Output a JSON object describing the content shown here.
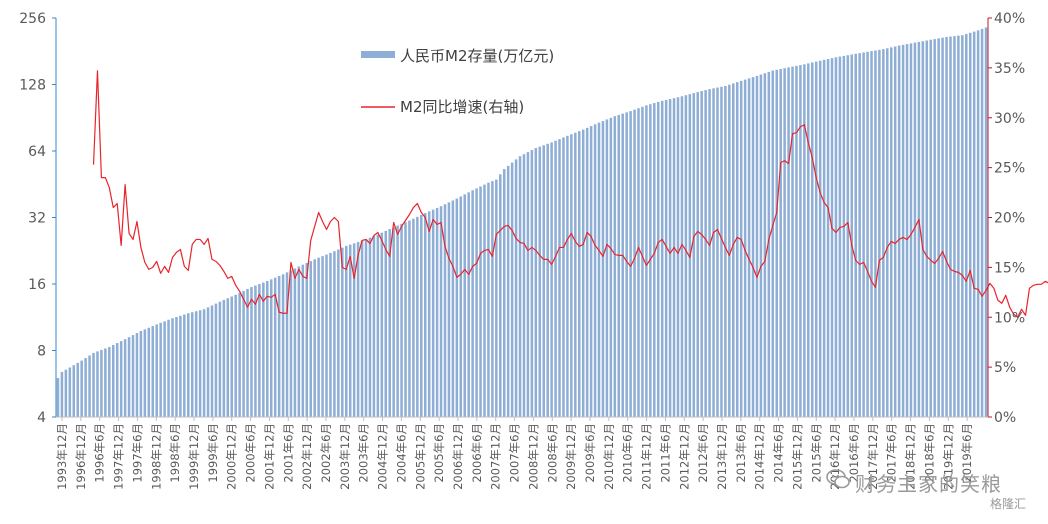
{
  "chart_data": {
    "type": "bar+line",
    "title": "",
    "left_axis": {
      "scale": "log2",
      "range": [
        4,
        256
      ],
      "ticks": [
        "4",
        "8",
        "16",
        "32",
        "64",
        "128",
        "256"
      ]
    },
    "right_axis": {
      "range": [
        0,
        40
      ],
      "ticks": [
        "0%",
        "5%",
        "10%",
        "15%",
        "20%",
        "25%",
        "30%",
        "35%",
        "40%"
      ]
    },
    "x_labels": [
      "1993年12月",
      "1996年12月",
      "1996年6月",
      "1997年12月",
      "1997年6月",
      "1998年12月",
      "1998年6月",
      "1999年12月",
      "1999年6月",
      "2000年12月",
      "2000年6月",
      "2001年12月",
      "2001年6月",
      "2002年12月",
      "2002年6月",
      "2003年12月",
      "2003年6月",
      "2004年12月",
      "2004年6月",
      "2005年12月",
      "2005年6月",
      "2006年12月",
      "2006年6月",
      "2007年12月",
      "2007年6月",
      "2008年12月",
      "2008年6月",
      "2009年12月",
      "2009年6月",
      "2010年12月",
      "2010年6月",
      "2011年12月",
      "2011年6月",
      "2012年12月",
      "2012年6月",
      "2013年12月",
      "2013年6月",
      "2014年12月",
      "2014年6月",
      "2015年12月",
      "2015年6月",
      "2016年12月",
      "2016年6月",
      "2017年12月",
      "2017年6月",
      "2018年12月",
      "2018年6月",
      "2019年12月",
      "2019年6月"
    ],
    "series": [
      {
        "name": "人民币M2存量(万亿元)",
        "type": "bar",
        "axis": "left",
        "color": "#8eaed6",
        "anchors": [
          [
            0,
            6.0
          ],
          [
            1,
            6.4
          ],
          [
            3,
            6.7
          ],
          [
            6,
            7.2
          ],
          [
            9,
            7.8
          ],
          [
            13,
            8.3
          ],
          [
            17,
            9.0
          ],
          [
            21,
            9.8
          ],
          [
            25,
            10.5
          ],
          [
            29,
            11.2
          ],
          [
            33,
            11.8
          ],
          [
            37,
            12.3
          ],
          [
            41,
            13.3
          ],
          [
            45,
            14.3
          ],
          [
            49,
            15.5
          ],
          [
            53,
            16.5
          ],
          [
            57,
            17.7
          ],
          [
            61,
            19.2
          ],
          [
            65,
            20.7
          ],
          [
            69,
            22.1
          ],
          [
            73,
            23.8
          ],
          [
            77,
            25.1
          ],
          [
            81,
            26.8
          ],
          [
            85,
            28.9
          ],
          [
            89,
            31.0
          ],
          [
            93,
            33.5
          ],
          [
            97,
            36.0
          ],
          [
            101,
            39.0
          ],
          [
            105,
            42.5
          ],
          [
            109,
            46.0
          ],
          [
            111,
            47.5
          ],
          [
            113,
            53.0
          ],
          [
            117,
            60.6
          ],
          [
            121,
            66.0
          ],
          [
            125,
            70.0
          ],
          [
            129,
            75.0
          ],
          [
            133,
            80.0
          ],
          [
            137,
            86.0
          ],
          [
            141,
            92.0
          ],
          [
            145,
            97.0
          ],
          [
            149,
            103.0
          ],
          [
            153,
            108.0
          ],
          [
            157,
            112.0
          ],
          [
            161,
            117.0
          ],
          [
            165,
            122.0
          ],
          [
            169,
            126.0
          ],
          [
            173,
            133.0
          ],
          [
            177,
            140.0
          ],
          [
            181,
            148.0
          ],
          [
            185,
            153.0
          ],
          [
            189,
            158.0
          ],
          [
            193,
            164.0
          ],
          [
            197,
            170.0
          ],
          [
            201,
            175.0
          ],
          [
            205,
            180.0
          ],
          [
            209,
            185.0
          ],
          [
            213,
            192.0
          ],
          [
            217,
            198.0
          ],
          [
            221,
            204.0
          ],
          [
            225,
            210.0
          ],
          [
            229,
            214.0
          ],
          [
            233,
            225.0
          ],
          [
            235,
            232.0
          ]
        ]
      },
      {
        "name": "M2同比增速(右轴)",
        "type": "line",
        "axis": "right",
        "color": "#e8242b",
        "start_index": 9,
        "values": [
          25.3,
          34.7,
          24.0,
          24.0,
          23.0,
          21.0,
          21.4,
          17.2,
          23.3,
          18.4,
          17.8,
          19.6,
          17.0,
          15.5,
          14.8,
          15.0,
          15.6,
          14.4,
          15.1,
          14.5,
          16.0,
          16.5,
          16.8,
          15.1,
          14.7,
          17.3,
          17.8,
          17.8,
          17.3,
          17.9,
          15.8,
          15.6,
          15.2,
          14.6,
          13.9,
          14.1,
          13.2,
          12.6,
          11.8,
          11.0,
          11.8,
          11.3,
          12.3,
          11.6,
          12.1,
          12.0,
          12.3,
          10.5,
          10.4,
          10.4,
          15.5,
          13.9,
          14.8,
          14.1,
          13.9,
          17.7,
          19.1,
          20.5,
          19.6,
          18.8,
          19.6,
          20.0,
          19.6,
          15.0,
          14.8,
          16.1,
          13.9,
          16.2,
          17.7,
          17.8,
          17.4,
          18.2,
          18.5,
          17.7,
          16.8,
          16.1,
          19.5,
          18.3,
          19.1,
          19.7,
          20.3,
          21.0,
          21.4,
          20.5,
          20.0,
          18.6,
          19.8,
          19.3,
          19.5,
          17.1,
          15.9,
          15.1,
          14.0,
          14.3,
          14.8,
          14.3,
          15.1,
          15.4,
          16.4,
          16.7,
          16.8,
          16.1,
          18.3,
          18.7,
          19.1,
          19.2,
          18.7,
          17.9,
          17.5,
          17.4,
          16.7,
          17.0,
          16.7,
          16.2,
          15.8,
          15.8,
          15.3,
          16.1,
          17.0,
          17.0,
          17.8,
          18.4,
          17.6,
          17.1,
          17.3,
          18.5,
          18.1,
          17.2,
          16.7,
          16.1,
          17.3,
          16.9,
          16.3,
          16.2,
          16.2,
          15.6,
          15.1,
          15.9,
          17.0,
          16.1,
          15.2,
          15.8,
          16.4,
          17.5,
          17.8,
          17.1,
          16.4,
          17.0,
          16.4,
          17.3,
          16.7,
          16.0,
          18.1,
          18.6,
          18.3,
          17.8,
          17.2,
          18.5,
          18.8,
          17.9,
          17.0,
          16.2,
          17.3,
          18.0,
          17.8,
          16.7,
          15.8,
          15.0,
          14.0,
          15.1,
          15.6,
          17.8,
          19.2,
          20.5,
          25.5,
          25.7,
          25.4,
          28.4,
          28.5,
          29.1,
          29.3,
          27.5,
          26.0,
          24.0,
          22.5,
          21.5,
          21.0,
          18.9,
          18.5,
          19.0,
          19.1,
          19.5,
          17.2,
          15.7,
          15.3,
          15.5,
          14.6,
          13.6,
          13.0,
          15.7,
          16.0,
          17.0,
          17.6,
          17.4,
          17.8,
          18.0,
          17.8,
          18.3,
          19.0,
          19.8,
          16.8,
          16.1,
          15.7,
          15.4,
          15.9,
          16.6,
          15.6,
          14.8,
          14.6,
          14.5,
          14.2,
          13.6,
          14.7,
          12.9,
          12.8,
          12.1,
          12.7,
          13.4,
          12.9,
          11.7,
          11.4,
          12.2,
          11.0,
          10.3,
          10.0,
          10.8,
          10.2,
          12.9,
          13.2,
          13.3,
          13.3,
          13.6,
          13.4,
          13.2,
          13.0,
          11.7,
          11.3,
          11.4,
          11.5,
          11.3,
          11.8,
          11.3,
          11.0,
          10.5,
          10.1,
          9.6,
          9.4,
          9.7,
          9.0,
          9.1,
          8.5,
          8.4,
          8.6,
          8.7,
          8.3,
          8.2,
          8.0,
          8.2,
          8.4,
          8.7,
          8.3,
          8.6,
          8.4,
          8.3,
          8.4,
          8.7,
          8.6,
          9.0,
          11.1,
          11.0,
          10.4,
          10.8,
          10.7,
          10.4,
          9.8,
          10.1,
          9.3,
          8.2,
          8.8
        ]
      }
    ],
    "legend": [
      {
        "label": "人民币M2存量(万亿元)",
        "kind": "bar",
        "position": "top-center"
      },
      {
        "label": "M2同比增速(右轴)",
        "kind": "line",
        "position": "top-center"
      }
    ]
  },
  "watermark": {
    "main_text": "财务主家的笑粮",
    "brand_text": "格隆汇"
  },
  "colors": {
    "bar": "#8eaed6",
    "line": "#e8242b",
    "left_axis": "#3a86c8",
    "right_axis": "#c0182a",
    "text": "#595959"
  }
}
